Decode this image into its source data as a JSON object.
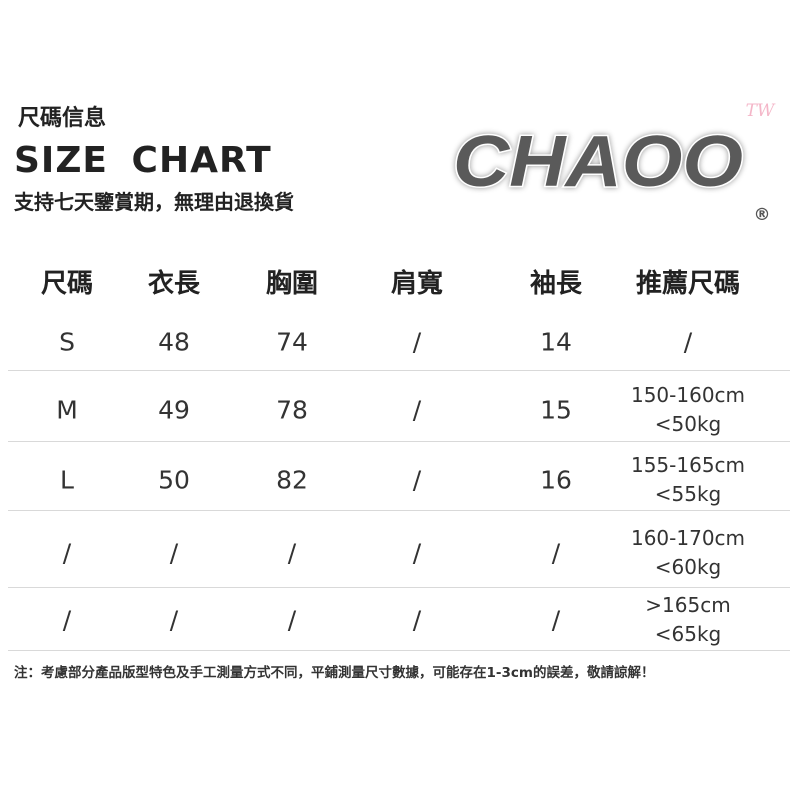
{
  "header": {
    "title_zh": "尺碼信息",
    "title_en": "SIZE  CHART",
    "subtitle": "支持七天鑒賞期，無理由退換貨"
  },
  "logo": {
    "text": "CHAOO",
    "superscript": "TW",
    "mark": "®",
    "color": "#5a5a5a",
    "accent": "#f4b6c8"
  },
  "table": {
    "columns": [
      "尺碼",
      "衣長",
      "胸圍",
      "肩寬",
      "袖長",
      "推薦尺碼"
    ],
    "rows": [
      [
        "S",
        "48",
        "74",
        "/",
        "14",
        "/"
      ],
      [
        "M",
        "49",
        "78",
        "/",
        "15",
        "150-160cm\n<50kg"
      ],
      [
        "L",
        "50",
        "82",
        "/",
        "16",
        "155-165cm\n<55kg"
      ],
      [
        "/",
        "/",
        "/",
        "/",
        "/",
        "160-170cm\n<60kg"
      ],
      [
        "/",
        "/",
        "/",
        "/",
        "/",
        ">165cm\n<65kg"
      ]
    ]
  },
  "note": "注：考慮部分產品版型特色及手工測量方式不同，平鋪測量尺寸數據，可能存在1-3cm的誤差，敬請諒解！"
}
